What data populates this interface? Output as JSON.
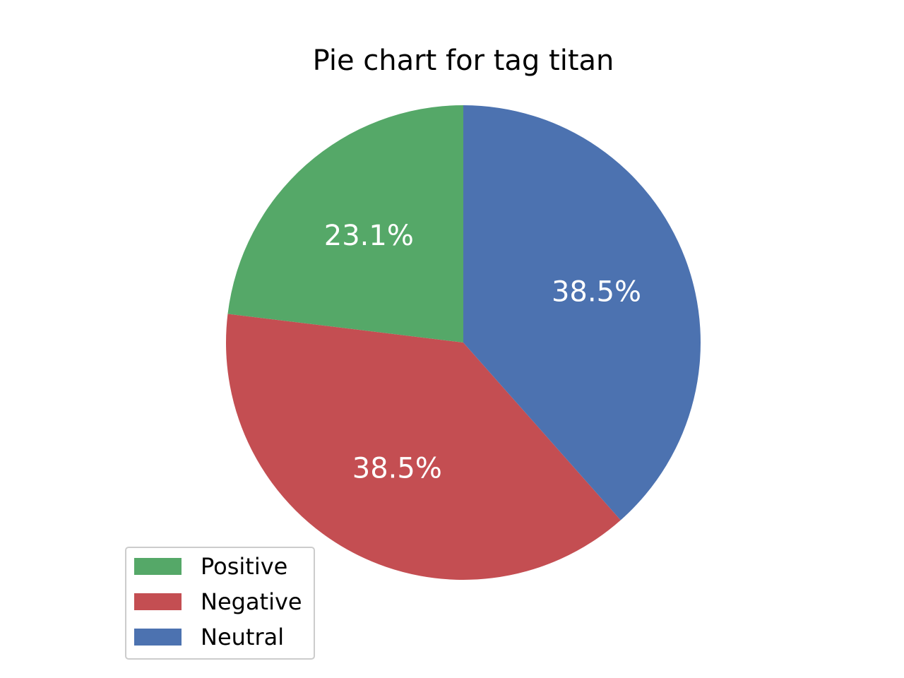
{
  "chart_data": {
    "type": "pie",
    "title": "Pie chart for tag titan",
    "start_angle_deg": 90,
    "direction": "counterclockwise",
    "slices": [
      {
        "label": "Positive",
        "value": 23.1,
        "pct_label": "23.1%",
        "color": "#55a868"
      },
      {
        "label": "Negative",
        "value": 38.5,
        "pct_label": "38.5%",
        "color": "#c44e52"
      },
      {
        "label": "Neutral",
        "value": 38.5,
        "pct_label": "38.5%",
        "color": "#4c72b0"
      }
    ],
    "legend": {
      "placement": "lower-left",
      "entries": [
        "Positive",
        "Negative",
        "Neutral"
      ]
    }
  }
}
